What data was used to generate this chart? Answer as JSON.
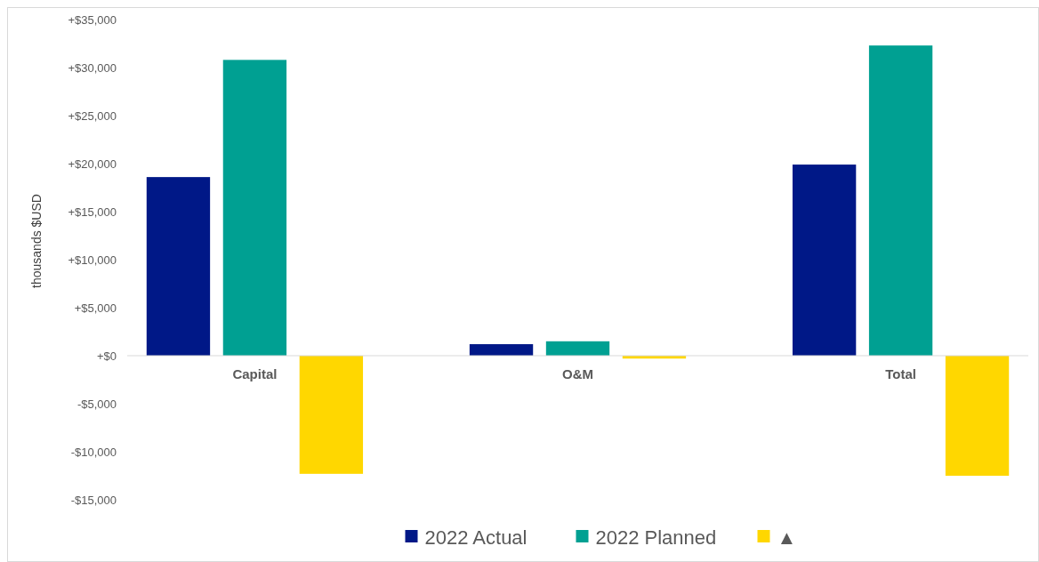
{
  "chart_data": {
    "type": "bar",
    "ylabel": "thousands $USD",
    "categories": [
      "Capital",
      "O&M",
      "Total"
    ],
    "series": [
      {
        "name": "2022 Actual",
        "color": "#001887",
        "values": [
          18600,
          1200,
          19900
        ]
      },
      {
        "name": "2022 Planned",
        "color": "#00a092",
        "values": [
          30800,
          1500,
          32300
        ]
      },
      {
        "name": "▲",
        "color": "#ffd700",
        "values": [
          -12300,
          -300,
          -12500
        ]
      }
    ],
    "ylim": [
      -15000,
      35000
    ],
    "yticks": [
      {
        "value": -15000,
        "label": "-$15,000"
      },
      {
        "value": -10000,
        "label": "-$10,000"
      },
      {
        "value": -5000,
        "label": "-$5,000"
      },
      {
        "value": 0,
        "label": "+$0"
      },
      {
        "value": 5000,
        "label": "+$5,000"
      },
      {
        "value": 10000,
        "label": "+$10,000"
      },
      {
        "value": 15000,
        "label": "+$15,000"
      },
      {
        "value": 20000,
        "label": "+$20,000"
      },
      {
        "value": 25000,
        "label": "+$25,000"
      },
      {
        "value": 30000,
        "label": "+$30,000"
      },
      {
        "value": 35000,
        "label": "+$35,000"
      }
    ],
    "legend": "bottom"
  }
}
